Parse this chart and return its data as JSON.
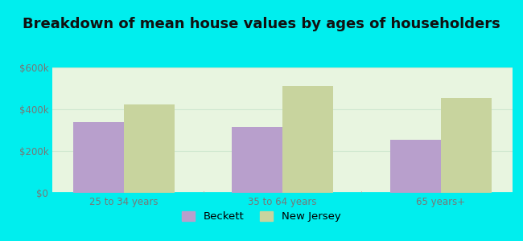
{
  "title": "Breakdown of mean house values by ages of householders",
  "categories": [
    "25 to 34 years",
    "35 to 64 years",
    "65 years+"
  ],
  "beckett_values": [
    340000,
    315000,
    255000
  ],
  "nj_values": [
    425000,
    510000,
    455000
  ],
  "ylim": [
    0,
    600000
  ],
  "yticks": [
    0,
    200000,
    400000,
    600000
  ],
  "ytick_labels": [
    "$0",
    "$200k",
    "$400k",
    "$600k"
  ],
  "bar_color_beckett": "#b89fcc",
  "bar_color_nj": "#c8d49e",
  "background_outer": "#00eeee",
  "background_inner": "#e8f5e0",
  "grid_color": "#d0e8d0",
  "bar_width": 0.32,
  "legend_labels": [
    "Beckett",
    "New Jersey"
  ],
  "title_fontsize": 13,
  "tick_fontsize": 8.5,
  "legend_fontsize": 9.5,
  "tick_color": "#777777",
  "title_color": "#111111"
}
